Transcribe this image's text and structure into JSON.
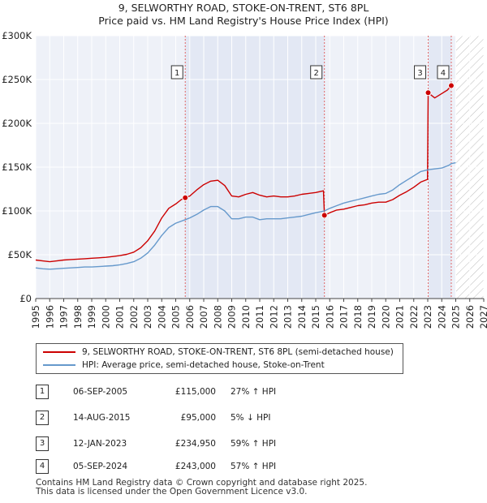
{
  "title_line1": "9, SELWORTHY ROAD, STOKE-ON-TRENT, ST6 8PL",
  "title_line2": "Price paid vs. HM Land Registry's House Price Index (HPI)",
  "chart_data": {
    "type": "line",
    "xlim": [
      1995,
      2027
    ],
    "ylim": [
      0,
      300000
    ],
    "x_ticks": [
      1995,
      1996,
      1997,
      1998,
      1999,
      2000,
      2001,
      2002,
      2003,
      2004,
      2005,
      2006,
      2007,
      2008,
      2009,
      2010,
      2011,
      2012,
      2013,
      2014,
      2015,
      2016,
      2017,
      2018,
      2019,
      2020,
      2021,
      2022,
      2023,
      2024,
      2025,
      2026,
      2027
    ],
    "y_ticks": [
      {
        "value": 0,
        "label": "£0"
      },
      {
        "value": 50000,
        "label": "£50K"
      },
      {
        "value": 100000,
        "label": "£100K"
      },
      {
        "value": 150000,
        "label": "£150K"
      },
      {
        "value": 200000,
        "label": "£200K"
      },
      {
        "value": 250000,
        "label": "£250K"
      },
      {
        "value": 300000,
        "label": "£300K"
      }
    ],
    "grid": true,
    "projection_start": 2025.0,
    "series": [
      {
        "name": "9, SELWORTHY ROAD, STOKE-ON-TRENT, ST6 8PL (semi-detached house)",
        "color": "#cc0000",
        "points": [
          [
            1995.0,
            44000
          ],
          [
            1995.5,
            43000
          ],
          [
            1996.0,
            42000
          ],
          [
            1996.5,
            43000
          ],
          [
            1997.0,
            44000
          ],
          [
            1997.5,
            44500
          ],
          [
            1998.0,
            45000
          ],
          [
            1998.5,
            45500
          ],
          [
            1999.0,
            46000
          ],
          [
            1999.5,
            46500
          ],
          [
            2000.0,
            47000
          ],
          [
            2000.5,
            48000
          ],
          [
            2001.0,
            49000
          ],
          [
            2001.5,
            50500
          ],
          [
            2002.0,
            53000
          ],
          [
            2002.5,
            58000
          ],
          [
            2003.0,
            66000
          ],
          [
            2003.5,
            77000
          ],
          [
            2004.0,
            92000
          ],
          [
            2004.5,
            103000
          ],
          [
            2005.0,
            108000
          ],
          [
            2005.4,
            113000
          ],
          [
            2005.68,
            115000
          ],
          [
            2006.0,
            117000
          ],
          [
            2006.5,
            124000
          ],
          [
            2007.0,
            130000
          ],
          [
            2007.5,
            134000
          ],
          [
            2008.0,
            135000
          ],
          [
            2008.5,
            129000
          ],
          [
            2009.0,
            117000
          ],
          [
            2009.5,
            116000
          ],
          [
            2010.0,
            119000
          ],
          [
            2010.5,
            121000
          ],
          [
            2011.0,
            118000
          ],
          [
            2011.5,
            116000
          ],
          [
            2012.0,
            117000
          ],
          [
            2012.5,
            116000
          ],
          [
            2013.0,
            116000
          ],
          [
            2013.5,
            117000
          ],
          [
            2014.0,
            119000
          ],
          [
            2014.5,
            120000
          ],
          [
            2015.0,
            121000
          ],
          [
            2015.55,
            123000
          ],
          [
            2015.62,
            95000
          ],
          [
            2016.0,
            98000
          ],
          [
            2016.5,
            101000
          ],
          [
            2017.0,
            102000
          ],
          [
            2017.5,
            104000
          ],
          [
            2018.0,
            106000
          ],
          [
            2018.5,
            107000
          ],
          [
            2019.0,
            109000
          ],
          [
            2019.5,
            110000
          ],
          [
            2020.0,
            110000
          ],
          [
            2020.5,
            113000
          ],
          [
            2021.0,
            118000
          ],
          [
            2021.5,
            122000
          ],
          [
            2022.0,
            127000
          ],
          [
            2022.5,
            133000
          ],
          [
            2022.98,
            136000
          ],
          [
            2023.03,
            234950
          ],
          [
            2023.5,
            229000
          ],
          [
            2024.0,
            234000
          ],
          [
            2024.4,
            238000
          ],
          [
            2024.68,
            243000
          ]
        ]
      },
      {
        "name": "HPI: Average price, semi-detached house, Stoke-on-Trent",
        "color": "#6699cc",
        "points": [
          [
            1995.0,
            35000
          ],
          [
            1995.5,
            34000
          ],
          [
            1996.0,
            33500
          ],
          [
            1996.5,
            34000
          ],
          [
            1997.0,
            34500
          ],
          [
            1997.5,
            35000
          ],
          [
            1998.0,
            35500
          ],
          [
            1998.5,
            36000
          ],
          [
            1999.0,
            36000
          ],
          [
            1999.5,
            36500
          ],
          [
            2000.0,
            37000
          ],
          [
            2000.5,
            37500
          ],
          [
            2001.0,
            38500
          ],
          [
            2001.5,
            40000
          ],
          [
            2002.0,
            42000
          ],
          [
            2002.5,
            46000
          ],
          [
            2003.0,
            52000
          ],
          [
            2003.5,
            61000
          ],
          [
            2004.0,
            72000
          ],
          [
            2004.5,
            81000
          ],
          [
            2005.0,
            86000
          ],
          [
            2005.68,
            90000
          ],
          [
            2006.0,
            92000
          ],
          [
            2006.5,
            96000
          ],
          [
            2007.0,
            101000
          ],
          [
            2007.5,
            105000
          ],
          [
            2008.0,
            105000
          ],
          [
            2008.5,
            100000
          ],
          [
            2009.0,
            91000
          ],
          [
            2009.5,
            91000
          ],
          [
            2010.0,
            93000
          ],
          [
            2010.5,
            93000
          ],
          [
            2011.0,
            90000
          ],
          [
            2011.5,
            91000
          ],
          [
            2012.0,
            91000
          ],
          [
            2012.5,
            91000
          ],
          [
            2013.0,
            92000
          ],
          [
            2013.5,
            93000
          ],
          [
            2014.0,
            94000
          ],
          [
            2014.5,
            96000
          ],
          [
            2015.0,
            98000
          ],
          [
            2015.62,
            100000
          ],
          [
            2016.0,
            103000
          ],
          [
            2016.5,
            106000
          ],
          [
            2017.0,
            109000
          ],
          [
            2017.5,
            111000
          ],
          [
            2018.0,
            113000
          ],
          [
            2018.5,
            115000
          ],
          [
            2019.0,
            117000
          ],
          [
            2019.5,
            119000
          ],
          [
            2020.0,
            120000
          ],
          [
            2020.5,
            124000
          ],
          [
            2021.0,
            130000
          ],
          [
            2021.5,
            135000
          ],
          [
            2022.0,
            140000
          ],
          [
            2022.5,
            145000
          ],
          [
            2023.03,
            147000
          ],
          [
            2023.5,
            148000
          ],
          [
            2024.0,
            149000
          ],
          [
            2024.5,
            152000
          ],
          [
            2024.68,
            154000
          ],
          [
            2025.0,
            155000
          ]
        ]
      }
    ],
    "markers": [
      {
        "label": "1",
        "x": 2005.68,
        "y": 115000
      },
      {
        "label": "2",
        "x": 2015.62,
        "y": 95000
      },
      {
        "label": "3",
        "x": 2023.03,
        "y": 234950
      },
      {
        "label": "4",
        "x": 2024.68,
        "y": 243000
      }
    ]
  },
  "legend": [
    {
      "label": "9, SELWORTHY ROAD, STOKE-ON-TRENT, ST6 8PL (semi-detached house)",
      "color": "#cc0000"
    },
    {
      "label": "HPI: Average price, semi-detached house, Stoke-on-Trent",
      "color": "#6699cc"
    }
  ],
  "transactions": [
    {
      "num": "1",
      "date": "06-SEP-2005",
      "price": "£115,000",
      "hpi": "27% ↑ HPI"
    },
    {
      "num": "2",
      "date": "14-AUG-2015",
      "price": "£95,000",
      "hpi": "5% ↓ HPI"
    },
    {
      "num": "3",
      "date": "12-JAN-2023",
      "price": "£234,950",
      "hpi": "59% ↑ HPI"
    },
    {
      "num": "4",
      "date": "05-SEP-2024",
      "price": "£243,000",
      "hpi": "57% ↑ HPI"
    }
  ],
  "footer_line1": "Contains HM Land Registry data © Crown copyright and database right 2025.",
  "footer_line2": "This data is licensed under the Open Government Licence v3.0."
}
